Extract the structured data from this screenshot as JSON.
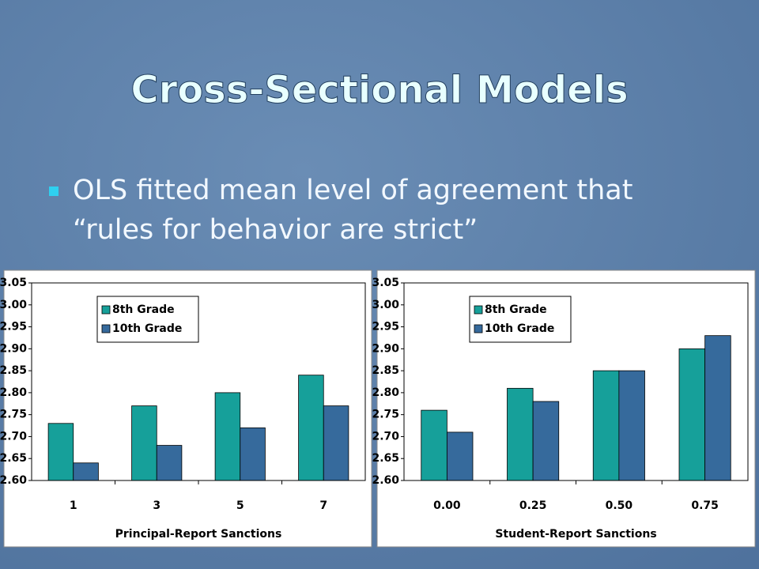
{
  "slide": {
    "title": "Cross-Sectional Models",
    "bullet": [
      "OLS fitted mean level of agreement that",
      "“rules for behavior are strict”"
    ]
  },
  "chart_data": [
    {
      "type": "bar",
      "x_label": "Principal-Report Sanctions",
      "categories": [
        "1",
        "3",
        "5",
        "7"
      ],
      "series": [
        {
          "name": "8th Grade",
          "color": "#16a09a",
          "values": [
            2.73,
            2.77,
            2.8,
            2.84
          ]
        },
        {
          "name": "10th Grade",
          "color": "#366a9c",
          "values": [
            2.64,
            2.68,
            2.72,
            2.77
          ]
        }
      ],
      "ylim": [
        2.6,
        3.05
      ],
      "yticks": [
        {
          "value": 2.6,
          "label": "2.60"
        },
        2.65,
        {
          "value": 2.7,
          "label": "2.70"
        },
        2.75,
        {
          "value": 2.8,
          "label": "2.80"
        },
        2.85,
        {
          "value": 2.9,
          "label": "2.90"
        },
        2.95,
        {
          "value": 3,
          "label": "3.00"
        },
        3.05
      ],
      "grid": false,
      "legend": "upper-left"
    },
    {
      "type": "bar",
      "x_label": "Student-Report Sanctions",
      "categories": [
        "0.00",
        "0.25",
        "0.50",
        "0.75"
      ],
      "series": [
        {
          "name": "8th Grade",
          "color": "#16a09a",
          "values": [
            2.76,
            2.81,
            2.85,
            2.9
          ]
        },
        {
          "name": "10th Grade",
          "color": "#366a9c",
          "values": [
            2.71,
            2.78,
            2.85,
            2.93
          ]
        }
      ],
      "ylim": [
        2.6,
        3.05
      ],
      "yticks": [
        {
          "value": 2.6,
          "label": "2.60"
        },
        2.65,
        {
          "value": 2.7,
          "label": "2.70"
        },
        2.75,
        {
          "value": 2.8,
          "label": "2.80"
        },
        2.85,
        {
          "value": 2.9,
          "label": "2.90"
        },
        2.95,
        {
          "value": 3,
          "label": "3.00"
        },
        3.05
      ],
      "grid": false,
      "legend": "upper-left"
    }
  ]
}
